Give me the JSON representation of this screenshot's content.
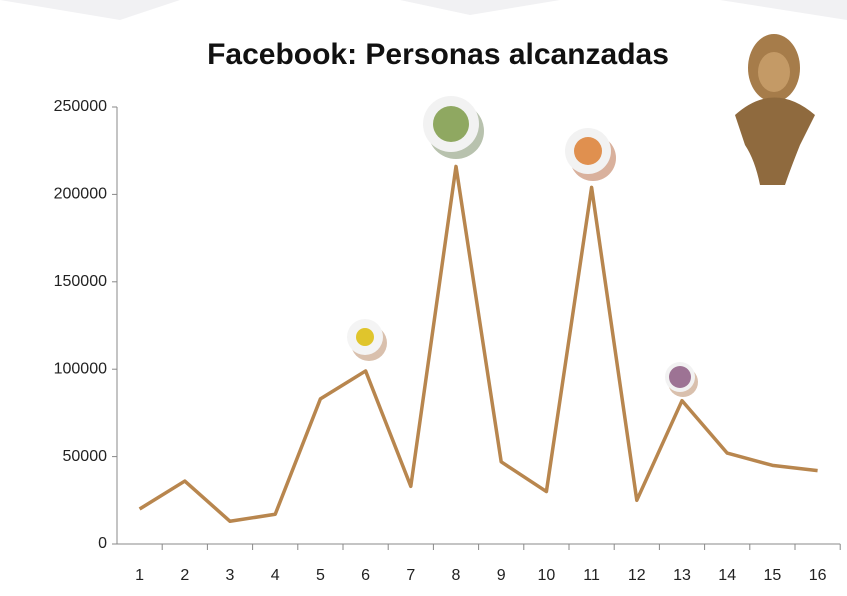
{
  "chart_data": {
    "type": "line",
    "title": "Facebook: Personas alcanzadas",
    "categories": [
      "1",
      "2",
      "3",
      "4",
      "5",
      "6",
      "7",
      "8",
      "9",
      "10",
      "11",
      "12",
      "13",
      "14",
      "15",
      "16"
    ],
    "series": [
      {
        "name": "Personas alcanzadas",
        "color": "#b8864e",
        "values": [
          20000,
          36000,
          13000,
          17000,
          83000,
          99000,
          33000,
          216000,
          47000,
          30000,
          204000,
          25000,
          82000,
          52000,
          45000,
          42000
        ]
      }
    ],
    "ylim": [
      0,
      250000
    ],
    "yticks": [
      0,
      50000,
      100000,
      150000,
      200000,
      250000
    ],
    "grid": false
  }
}
